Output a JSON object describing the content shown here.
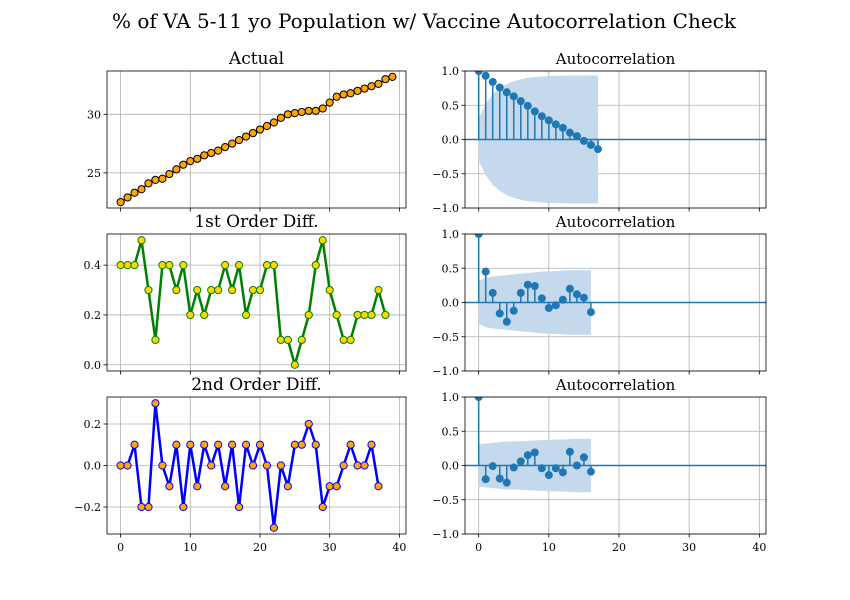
{
  "figure_title": "% of VA 5-11 yo Population w/ Vaccine Autocorrelation Check",
  "chart_data": [
    {
      "type": "scatter",
      "title": "Actual",
      "x": [
        0,
        1,
        2,
        3,
        4,
        5,
        6,
        7,
        8,
        9,
        10,
        11,
        12,
        13,
        14,
        15,
        16,
        17,
        18,
        19,
        20,
        21,
        22,
        23,
        24,
        25,
        26,
        27,
        28,
        29,
        30,
        31,
        32,
        33,
        34,
        35,
        36,
        37,
        38,
        39
      ],
      "values": [
        22.5,
        22.9,
        23.3,
        23.6,
        24.1,
        24.4,
        24.5,
        24.9,
        25.3,
        25.7,
        26.0,
        26.2,
        26.5,
        26.7,
        26.9,
        27.2,
        27.5,
        27.8,
        28.1,
        28.4,
        28.7,
        29.0,
        29.3,
        29.7,
        30.0,
        30.1,
        30.2,
        30.3,
        30.3,
        30.5,
        31.0,
        31.5,
        31.7,
        31.8,
        32.0,
        32.2,
        32.4,
        32.6,
        33.0,
        33.2
      ],
      "xlim": [
        -1.95,
        40.95
      ],
      "ylim": [
        22.0,
        33.7
      ],
      "yticks": [
        25,
        30
      ],
      "line_color": "#000000",
      "marker_color": "#ffa500",
      "grid": true
    },
    {
      "type": "line",
      "title": "1st Order Diff.",
      "x": [
        0,
        1,
        2,
        3,
        4,
        5,
        6,
        7,
        8,
        9,
        10,
        11,
        12,
        13,
        14,
        15,
        16,
        17,
        18,
        19,
        20,
        21,
        22,
        23,
        24,
        25,
        26,
        27,
        28,
        29,
        30,
        31,
        32,
        33,
        34,
        35,
        36,
        37,
        38
      ],
      "values": [
        0.4,
        0.4,
        0.4,
        0.5,
        0.3,
        0.1,
        0.4,
        0.4,
        0.3,
        0.4,
        0.2,
        0.3,
        0.2,
        0.3,
        0.3,
        0.4,
        0.3,
        0.4,
        0.2,
        0.3,
        0.3,
        0.4,
        0.4,
        0.1,
        0.1,
        0.0,
        0.1,
        0.2,
        0.4,
        0.5,
        0.3,
        0.2,
        0.1,
        0.1,
        0.2,
        0.2,
        0.2,
        0.3,
        0.2
      ],
      "xlim": [
        -1.95,
        40.95
      ],
      "ylim": [
        -0.025,
        0.525
      ],
      "yticks": [
        0.0,
        0.2,
        0.4
      ],
      "ytick_labels": [
        "0.0",
        "0.2",
        "0.4"
      ],
      "line_color": "#008000",
      "marker_color": "#ffd700",
      "grid": true
    },
    {
      "type": "line",
      "title": "2nd Order Diff.",
      "x": [
        0,
        1,
        2,
        3,
        4,
        5,
        6,
        7,
        8,
        9,
        10,
        11,
        12,
        13,
        14,
        15,
        16,
        17,
        18,
        19,
        20,
        21,
        22,
        23,
        24,
        25,
        26,
        27,
        28,
        29,
        30,
        31,
        32,
        33,
        34,
        35,
        36,
        37
      ],
      "values": [
        0.0,
        0.0,
        0.1,
        -0.2,
        -0.2,
        0.3,
        0.0,
        -0.1,
        0.1,
        -0.2,
        0.1,
        -0.1,
        0.1,
        0.0,
        0.1,
        -0.1,
        0.1,
        -0.2,
        0.1,
        0.0,
        0.1,
        0.0,
        -0.3,
        0.0,
        -0.1,
        0.1,
        0.1,
        0.2,
        0.1,
        -0.2,
        -0.1,
        -0.1,
        0.0,
        0.1,
        0.0,
        0.0,
        0.1,
        -0.1
      ],
      "xlim": [
        -1.95,
        40.95
      ],
      "ylim": [
        -0.33,
        0.33
      ],
      "yticks": [
        -0.2,
        0.0,
        0.2
      ],
      "ytick_labels": [
        "−0.2",
        "0.0",
        "0.2"
      ],
      "xticks": [
        0,
        10,
        20,
        30,
        40
      ],
      "line_color": "#0000ff",
      "marker_color": "#ffa500",
      "grid": true
    },
    {
      "type": "scatter",
      "title": "Autocorrelation",
      "x": [
        0,
        1,
        2,
        3,
        4,
        5,
        6,
        7,
        8,
        9,
        10,
        11,
        12,
        13,
        14,
        15,
        16,
        17
      ],
      "values": [
        1.0,
        0.93,
        0.84,
        0.76,
        0.69,
        0.63,
        0.56,
        0.49,
        0.41,
        0.34,
        0.28,
        0.22,
        0.17,
        0.1,
        0.05,
        -0.02,
        -0.08,
        -0.14
      ],
      "confidence_band": {
        "x": [
          0,
          1,
          2,
          3,
          4,
          5,
          6,
          7,
          8,
          9,
          10,
          11,
          12,
          13,
          14,
          15,
          16,
          17
        ],
        "upper": [
          0.31,
          0.52,
          0.66,
          0.75,
          0.81,
          0.85,
          0.88,
          0.9,
          0.91,
          0.92,
          0.925,
          0.93,
          0.93,
          0.935,
          0.935,
          0.935,
          0.935,
          0.935
        ]
      },
      "xlim": [
        -1.95,
        40.95
      ],
      "ylim": [
        -1.0,
        1.0
      ],
      "yticks": [
        -1.0,
        -0.5,
        0.0,
        0.5,
        1.0
      ],
      "ytick_labels": [
        "−1.0",
        "−0.5",
        "0.0",
        "0.5",
        "1.0"
      ],
      "color": "#1f77b4",
      "band_color": "#c4d9ec",
      "grid": true
    },
    {
      "type": "scatter",
      "title": "Autocorrelation",
      "x": [
        0,
        1,
        2,
        3,
        4,
        5,
        6,
        7,
        8,
        9,
        10,
        11,
        12,
        13,
        14,
        15,
        16
      ],
      "values": [
        1.0,
        0.45,
        0.14,
        -0.16,
        -0.28,
        -0.12,
        0.14,
        0.26,
        0.24,
        0.06,
        -0.08,
        -0.04,
        0.04,
        0.2,
        0.12,
        0.07,
        -0.14
      ],
      "confidence_band": {
        "x": [
          0,
          1,
          2,
          3,
          4,
          5,
          6,
          7,
          8,
          9,
          10,
          11,
          12,
          13,
          14,
          15,
          16
        ],
        "upper": [
          0.31,
          0.36,
          0.38,
          0.39,
          0.4,
          0.41,
          0.42,
          0.43,
          0.44,
          0.45,
          0.455,
          0.46,
          0.465,
          0.47,
          0.47,
          0.47,
          0.47
        ]
      },
      "xlim": [
        -1.95,
        40.95
      ],
      "ylim": [
        -1.0,
        1.0
      ],
      "yticks": [
        -1.0,
        -0.5,
        0.0,
        0.5,
        1.0
      ],
      "ytick_labels": [
        "−1.0",
        "−0.5",
        "0.0",
        "0.5",
        "1.0"
      ],
      "color": "#1f77b4",
      "band_color": "#c4d9ec",
      "grid": true
    },
    {
      "type": "scatter",
      "title": "Autocorrelation",
      "x": [
        0,
        1,
        2,
        3,
        4,
        5,
        6,
        7,
        8,
        9,
        10,
        11,
        12,
        13,
        14,
        15,
        16
      ],
      "values": [
        1.0,
        -0.2,
        -0.01,
        -0.19,
        -0.25,
        -0.03,
        0.06,
        0.15,
        0.19,
        -0.04,
        -0.14,
        -0.04,
        -0.1,
        0.2,
        0.0,
        0.12,
        -0.09
      ],
      "confidence_band": {
        "x": [
          0,
          1,
          2,
          3,
          4,
          5,
          6,
          7,
          8,
          9,
          10,
          11,
          12,
          13,
          14,
          15,
          16
        ],
        "upper": [
          0.31,
          0.32,
          0.33,
          0.34,
          0.35,
          0.35,
          0.355,
          0.36,
          0.365,
          0.37,
          0.375,
          0.38,
          0.38,
          0.385,
          0.39,
          0.39,
          0.39
        ]
      },
      "xlim": [
        -1.95,
        40.95
      ],
      "ylim": [
        -1.0,
        1.0
      ],
      "yticks": [
        -1.0,
        -0.5,
        0.0,
        0.5,
        1.0
      ],
      "ytick_labels": [
        "−1.0",
        "−0.5",
        "0.0",
        "0.5",
        "1.0"
      ],
      "xticks": [
        0,
        10,
        20,
        30,
        40
      ],
      "color": "#1f77b4",
      "band_color": "#c4d9ec",
      "grid": true
    }
  ]
}
